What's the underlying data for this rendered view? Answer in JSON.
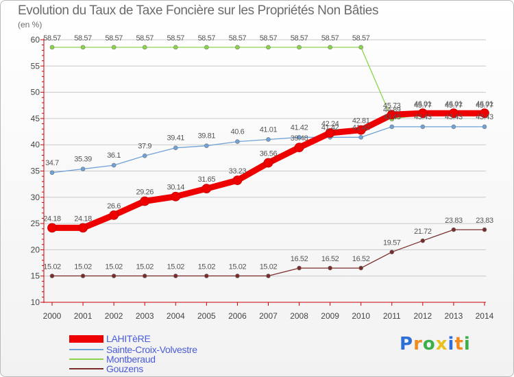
{
  "chart_data": {
    "type": "line",
    "title": "Evolution du Taux de Taxe Foncière sur les Propriétés Non Bâties",
    "subtitle": "(en %)",
    "xlabel": "",
    "ylabel": "",
    "ylim": [
      10,
      60
    ],
    "yticks": [
      "10",
      "15",
      "20",
      "25",
      "30",
      "35",
      "40",
      "45",
      "50",
      "55",
      "60"
    ],
    "x": [
      "2000",
      "2001",
      "2002",
      "2003",
      "2004",
      "2005",
      "2006",
      "2007",
      "2008",
      "2009",
      "2010",
      "2011",
      "2012",
      "2013",
      "2014"
    ],
    "legend_position": "bottom-left",
    "series": [
      {
        "name": "LAHITèRE",
        "color": "#ee0000",
        "values": [
          24.18,
          24.18,
          26.6,
          29.26,
          30.14,
          31.65,
          33.23,
          36.56,
          39.48,
          42.24,
          42.81,
          45.73,
          46.01,
          46.01,
          46.01
        ],
        "labels": [
          "24.18",
          "24.18",
          "26.6",
          "29.26",
          "30.14",
          "31.65",
          "33.23",
          "36.56",
          "39.48",
          "42.24",
          "42.81",
          "45.73",
          "46.01",
          "46.01",
          "46.01"
        ]
      },
      {
        "name": "Sainte-Croix-Volvestre",
        "color": "#6fa2d6",
        "values": [
          34.7,
          35.39,
          36.1,
          37.9,
          39.41,
          39.81,
          40.6,
          41.01,
          41.42,
          41.42,
          41.42,
          43.43,
          43.43,
          43.43,
          43.43
        ],
        "labels": [
          "34.7",
          "35.39",
          "36.1",
          "37.9",
          "39.41",
          "39.81",
          "40.6",
          "41.01",
          "41.42",
          "41.42",
          "41.42",
          "43.43",
          "43.43",
          "43.43",
          "43.43"
        ]
      },
      {
        "name": "Montberaud",
        "color": "#8bd44a",
        "values": [
          58.57,
          58.57,
          58.57,
          58.57,
          58.57,
          58.57,
          58.57,
          58.57,
          58.57,
          58.57,
          58.57,
          44.89,
          45.77,
          45.77,
          45.77
        ],
        "labels": [
          "58.57",
          "58.57",
          "58.57",
          "58.57",
          "58.57",
          "58.57",
          "58.57",
          "58.57",
          "58.57",
          "58.57",
          "58.57",
          "44.89",
          "45.77",
          "45.77",
          "45.77"
        ]
      },
      {
        "name": "Gouzens",
        "color": "#7a2c2c",
        "values": [
          15.02,
          15.02,
          15.02,
          15.02,
          15.02,
          15.02,
          15.02,
          15.02,
          16.52,
          16.52,
          16.52,
          19.57,
          21.72,
          23.83,
          23.83
        ],
        "labels": [
          "15.02",
          "15.02",
          "15.02",
          "15.02",
          "15.02",
          "15.02",
          "15.02",
          "15.02",
          "16.52",
          "16.52",
          "16.52",
          "19.57",
          "21.72",
          "23.83",
          "23.83"
        ]
      }
    ]
  },
  "brand": {
    "letters": [
      "P",
      "r",
      "o",
      "x",
      "i",
      "t",
      "i"
    ],
    "colors": [
      "#2d6fd8",
      "#f08c1e",
      "#3bb04a",
      "#e8c21a",
      "#2d6fd8",
      "#f08c1e",
      "#3bb04a"
    ]
  },
  "axis_color": "#cc0000",
  "grid_color": "#c8c8c8",
  "label_color": "#555555"
}
